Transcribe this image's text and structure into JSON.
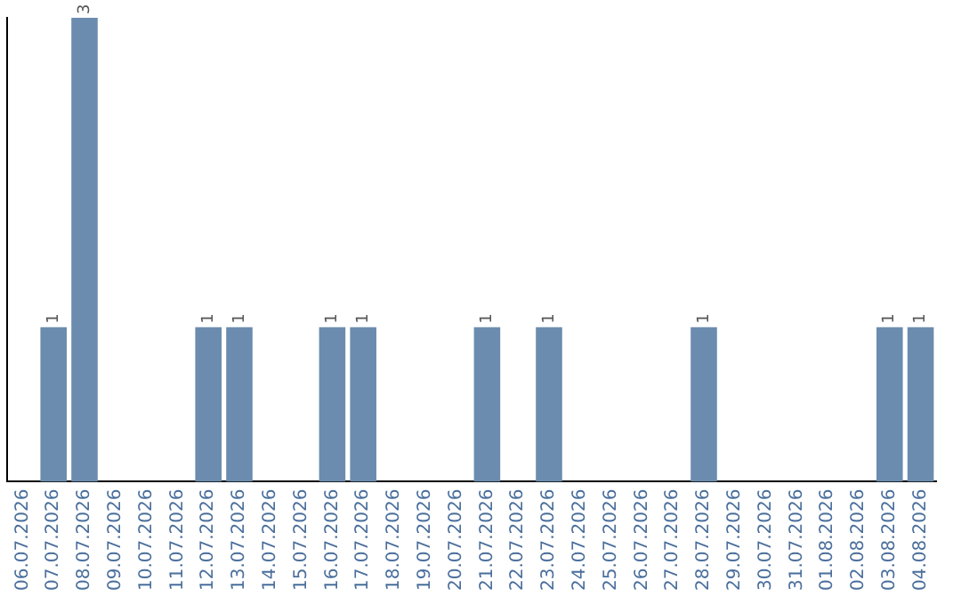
{
  "chart_data": {
    "type": "bar",
    "categories": [
      "06.07.2026",
      "07.07.2026",
      "08.07.2026",
      "09.07.2026",
      "10.07.2026",
      "11.07.2026",
      "12.07.2026",
      "13.07.2026",
      "14.07.2026",
      "15.07.2026",
      "16.07.2026",
      "17.07.2026",
      "18.07.2026",
      "19.07.2026",
      "20.07.2026",
      "21.07.2026",
      "22.07.2026",
      "23.07.2026",
      "24.07.2026",
      "25.07.2026",
      "26.07.2026",
      "27.07.2026",
      "28.07.2026",
      "29.07.2026",
      "30.07.2026",
      "31.07.2026",
      "01.08.2026",
      "02.08.2026",
      "03.08.2026",
      "04.08.2026"
    ],
    "values": [
      0,
      1,
      3,
      0,
      0,
      0,
      1,
      1,
      0,
      0,
      1,
      1,
      0,
      0,
      0,
      1,
      0,
      1,
      0,
      0,
      0,
      0,
      1,
      0,
      0,
      0,
      0,
      0,
      1,
      1
    ],
    "value_labels": [
      null,
      "1",
      "3",
      null,
      null,
      null,
      "1",
      "1",
      null,
      null,
      "1",
      "1",
      null,
      null,
      null,
      "1",
      null,
      "1",
      null,
      null,
      null,
      null,
      "1",
      null,
      null,
      null,
      null,
      null,
      "1",
      "1"
    ],
    "color": "#6b8cae",
    "grid": false,
    "legend": false,
    "tick_labels": "x"
  }
}
